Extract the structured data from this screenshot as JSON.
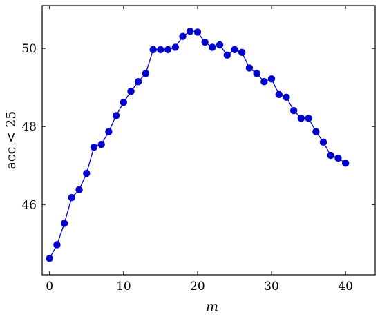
{
  "chart_data": {
    "type": "line",
    "xlabel": "m",
    "ylabel": "acc < 25",
    "xlim": [
      -1,
      44
    ],
    "ylim": [
      44.2,
      51.1
    ],
    "x_ticks": [
      0,
      10,
      20,
      30,
      40
    ],
    "y_ticks": [
      46,
      48,
      50
    ],
    "grid": false,
    "series": [
      {
        "color": "#0000cc",
        "marker": "circle",
        "x": [
          0,
          1,
          2,
          3,
          4,
          5,
          6,
          7,
          8,
          9,
          10,
          11,
          12,
          13,
          14,
          15,
          16,
          17,
          18,
          19,
          20,
          21,
          22,
          23,
          24,
          25,
          26,
          27,
          28,
          29,
          30,
          31,
          32,
          33,
          34,
          35,
          36,
          37,
          38,
          39,
          40
        ],
        "y": [
          44.62,
          44.97,
          45.52,
          46.18,
          46.38,
          46.8,
          47.47,
          47.54,
          47.87,
          48.28,
          48.62,
          48.9,
          49.15,
          49.36,
          49.97,
          49.97,
          49.97,
          50.03,
          50.31,
          50.44,
          50.42,
          50.16,
          50.03,
          50.09,
          49.83,
          49.97,
          49.9,
          49.5,
          49.36,
          49.15,
          49.22,
          48.82,
          48.75,
          48.41,
          48.21,
          48.21,
          47.87,
          47.6,
          47.26,
          47.19,
          47.06
        ]
      }
    ]
  }
}
